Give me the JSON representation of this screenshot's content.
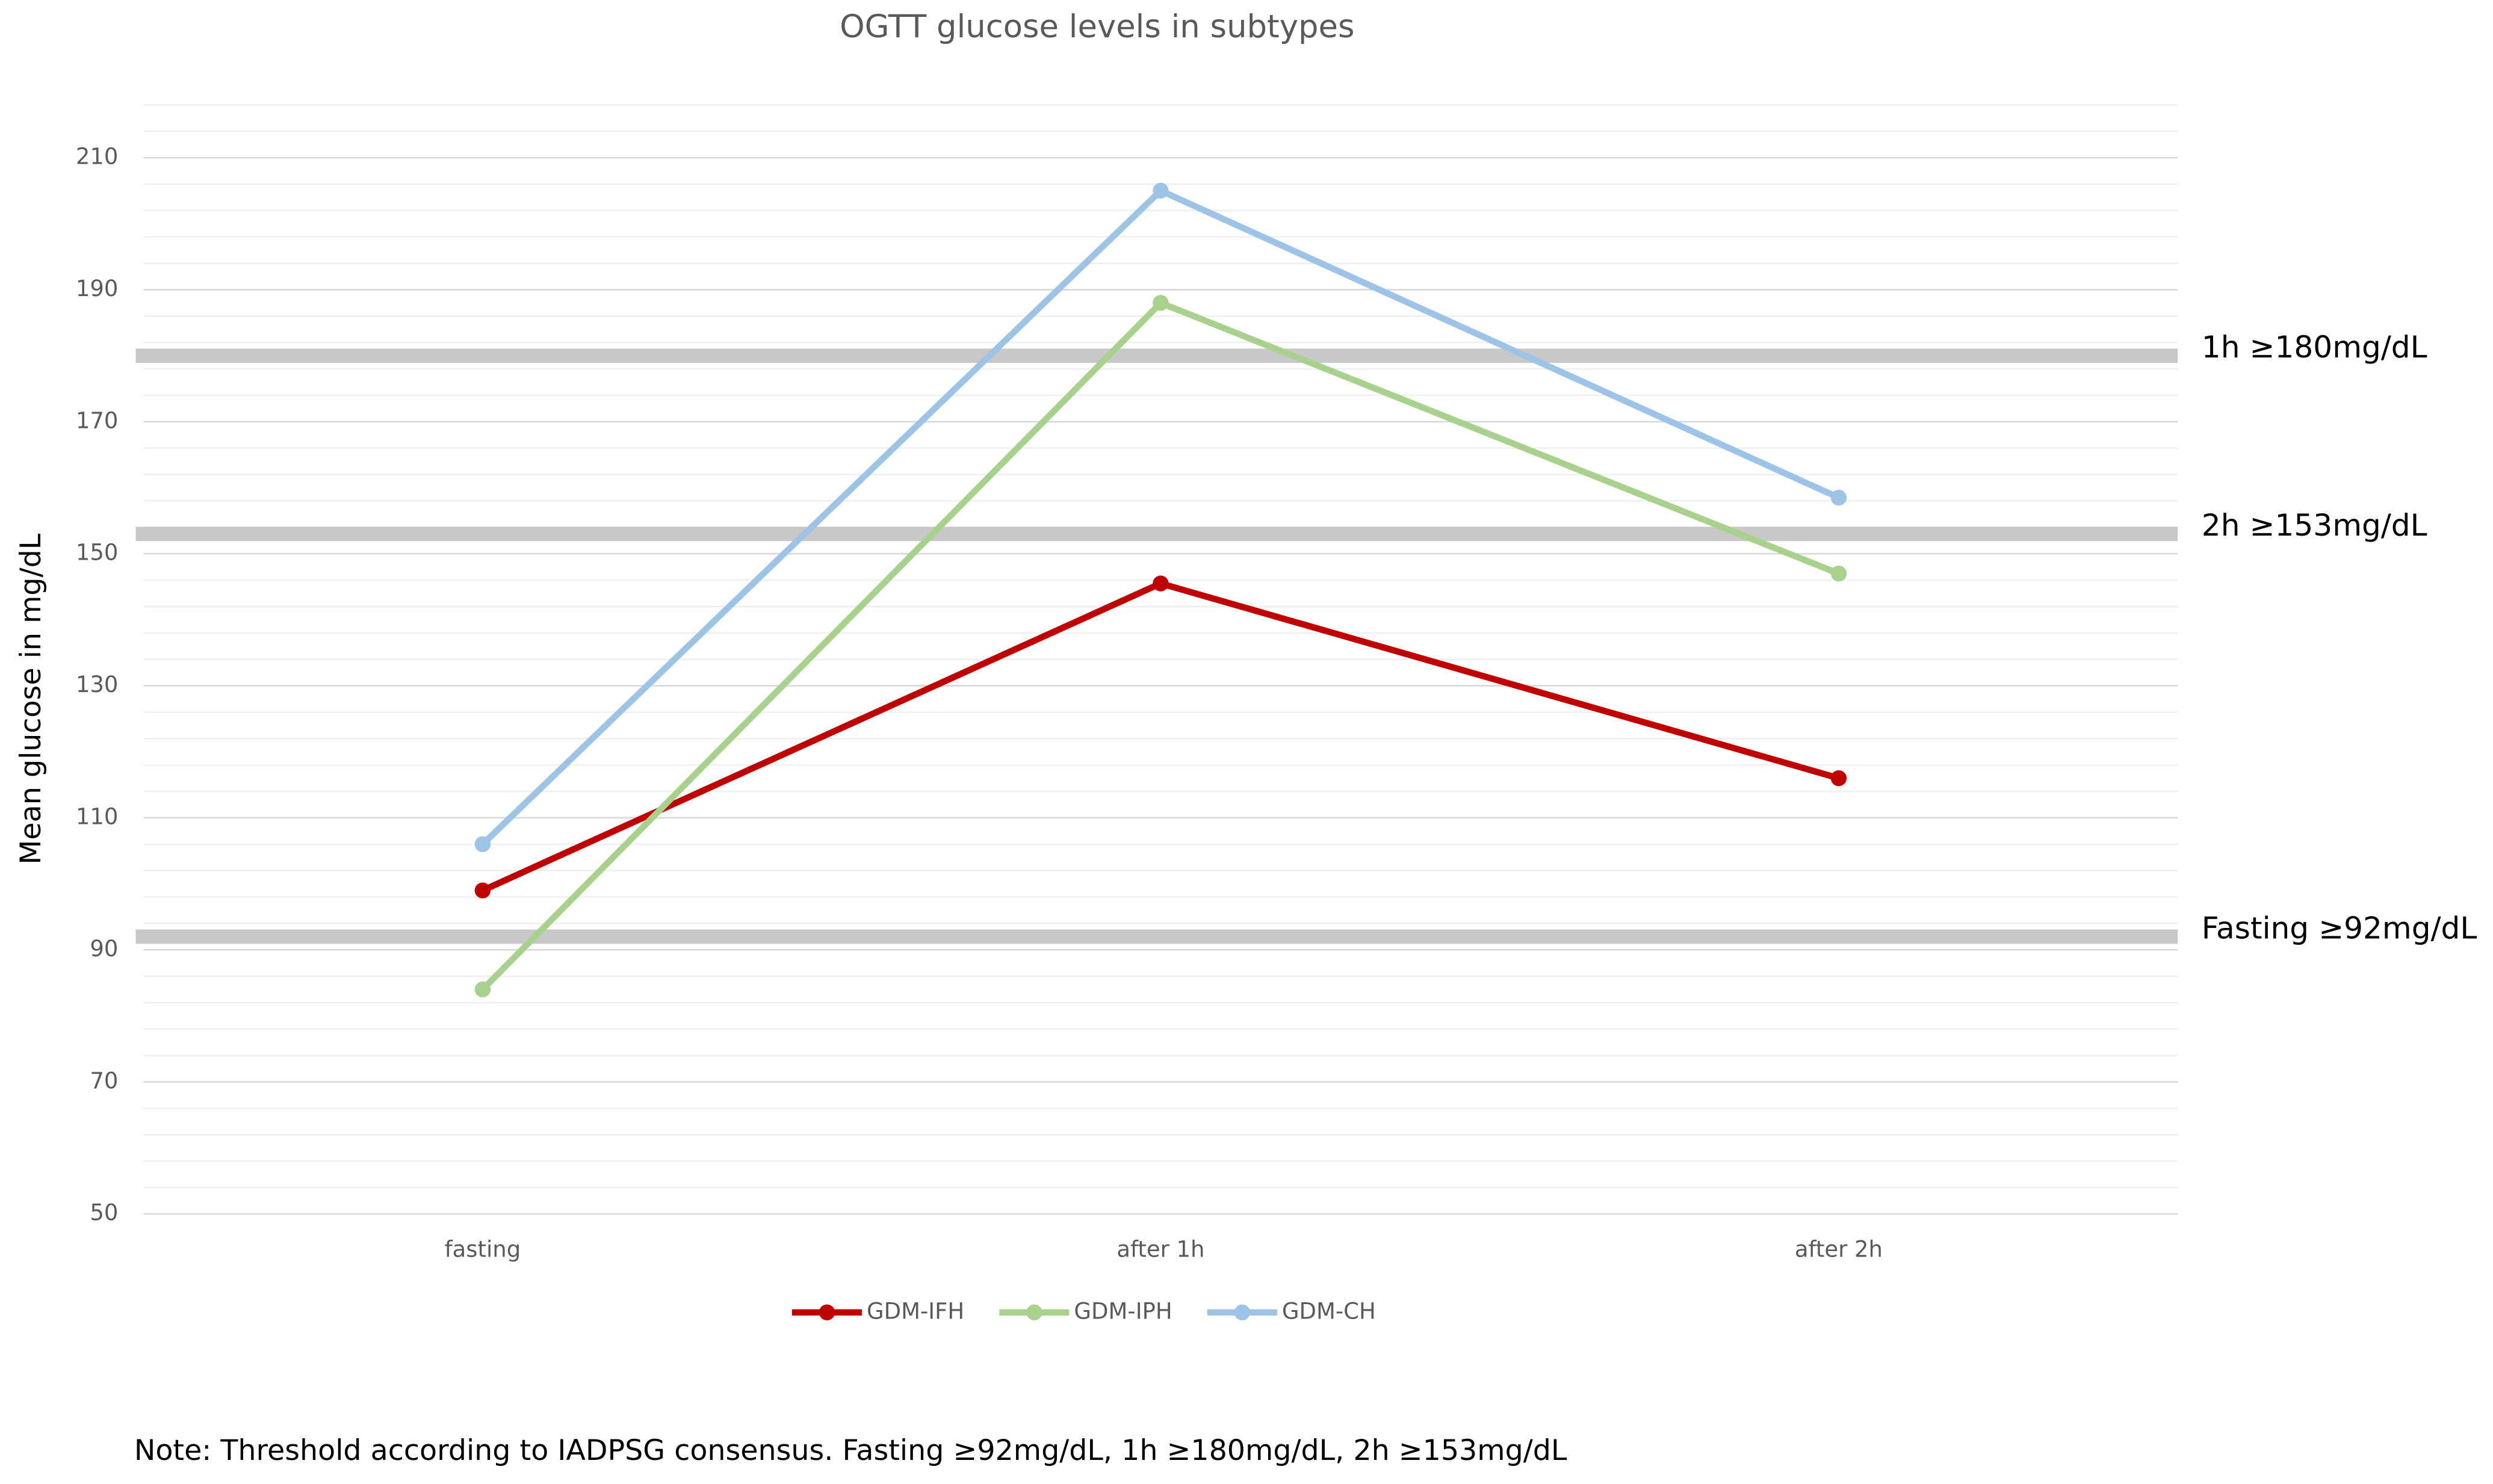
{
  "chart_data": {
    "type": "line",
    "title": "OGTT glucose levels in subtypes",
    "y_label": "Mean glucose in mg/dL",
    "categories": [
      "fasting",
      "after 1h",
      "after 2h"
    ],
    "series": [
      {
        "name": "GDM-IFH",
        "color": "#c00000",
        "values": [
          99,
          145.5,
          116
        ]
      },
      {
        "name": "GDM-IPH",
        "color": "#a9d18e",
        "values": [
          84,
          188,
          147
        ]
      },
      {
        "name": "GDM-CH",
        "color": "#9dc3e6",
        "values": [
          106,
          205,
          158.5
        ]
      }
    ],
    "ylim": [
      50,
      218
    ],
    "yticks": [
      50,
      70,
      90,
      110,
      130,
      150,
      170,
      190,
      210
    ],
    "grid": true,
    "minor_grid_step": 4,
    "thresholds": [
      {
        "label": "1h ≥180mg/dL",
        "value": 180
      },
      {
        "label": "2h ≥153mg/dL",
        "value": 153
      },
      {
        "label": "Fasting ≥92mg/dL",
        "value": 92
      }
    ],
    "legend": "bottom",
    "note": "Note: Threshold according to IADPSG consensus. Fasting ≥92mg/dL, 1h ≥180mg/dL, 2h ≥153mg/dL"
  }
}
